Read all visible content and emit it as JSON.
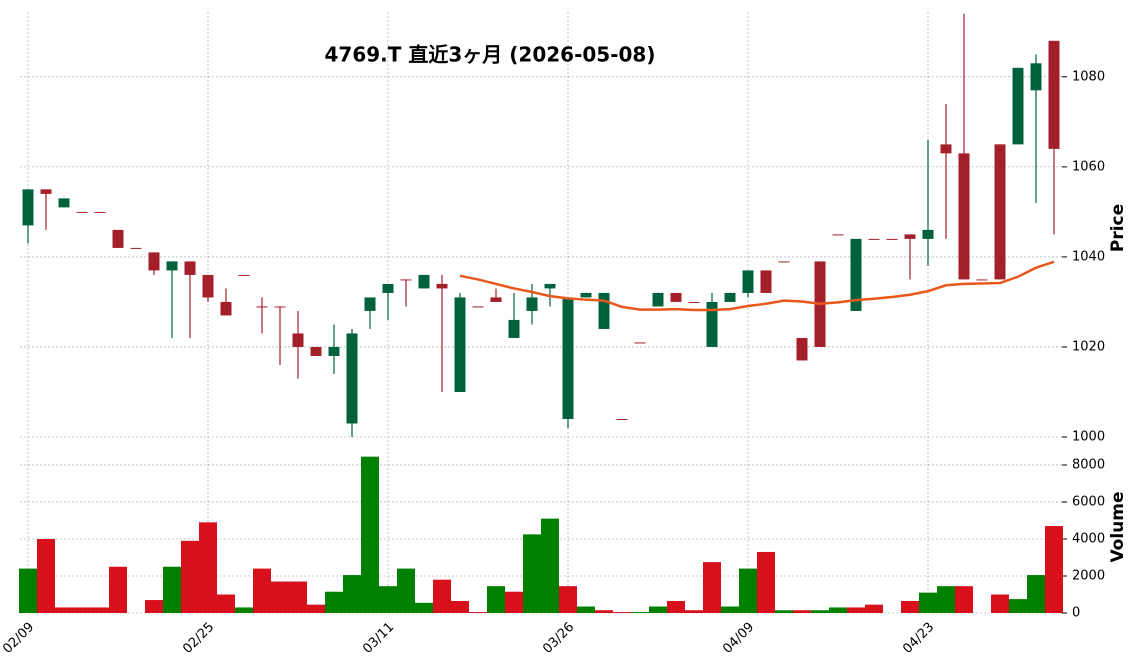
{
  "chart_data": [
    {
      "type": "candlestick",
      "title": "4769.T 直近3ヶ月 (2026-05-08)",
      "ylabel": "Price",
      "categories": [
        "02/09",
        null,
        null,
        null,
        null,
        null,
        null,
        null,
        null,
        null,
        "02/25",
        null,
        null,
        null,
        null,
        null,
        null,
        null,
        null,
        null,
        "03/11",
        null,
        null,
        null,
        null,
        null,
        null,
        null,
        null,
        null,
        "03/26",
        null,
        null,
        null,
        null,
        null,
        null,
        null,
        null,
        null,
        "04/09",
        null,
        null,
        null,
        null,
        null,
        null,
        null,
        null,
        null,
        "04/23",
        null,
        null,
        null,
        null,
        null,
        null,
        null
      ],
      "open": [
        1047,
        1055,
        1051,
        1050,
        1050,
        1046,
        1042,
        1041,
        1037,
        1039,
        1036,
        1030,
        1036,
        1029,
        1029,
        1023,
        1020,
        1018,
        1003,
        1028,
        1032,
        1035,
        1033,
        1034,
        1010,
        1029,
        1031,
        1022,
        1028,
        1033,
        1004,
        1031,
        1024,
        1004,
        1021,
        1029,
        1032,
        1030,
        1020,
        1030,
        1032,
        1037,
        1039,
        1022,
        1039,
        1045,
        1028,
        1044,
        1044,
        1045,
        1044,
        1065,
        1063,
        1035,
        1065,
        1065,
        1077,
        1088
      ],
      "high": [
        1055,
        1055,
        1053,
        1050,
        1050,
        1046,
        1042,
        1041,
        1039,
        1039,
        1036,
        1033,
        1036,
        1031,
        1029,
        1028,
        1020,
        1025,
        1024,
        1031,
        1034,
        1035,
        1036,
        1036,
        1032,
        1029,
        1033,
        1032,
        1034,
        1034,
        1031,
        1032,
        1032,
        1004,
        1021,
        1032,
        1032,
        1030,
        1032,
        1032,
        1037,
        1037,
        1039,
        1022,
        1039,
        1045,
        1044,
        1044,
        1044,
        1045,
        1066,
        1074,
        1094,
        1035,
        1065,
        1082,
        1085,
        1088
      ],
      "low": [
        1043,
        1046,
        1051,
        1050,
        1050,
        1042,
        1042,
        1036,
        1022,
        1022,
        1030,
        1027,
        1036,
        1023,
        1016,
        1013,
        1018,
        1014,
        1000,
        1024,
        1026,
        1029,
        1033,
        1010,
        1010,
        1029,
        1030,
        1022,
        1025,
        1029,
        1002,
        1031,
        1024,
        1004,
        1021,
        1029,
        1030,
        1030,
        1020,
        1030,
        1031,
        1032,
        1039,
        1017,
        1020,
        1045,
        1028,
        1044,
        1044,
        1035,
        1038,
        1044,
        1035,
        1035,
        1035,
        1065,
        1052,
        1045
      ],
      "close": [
        1055,
        1054,
        1053,
        1050,
        1050,
        1042,
        1042,
        1037,
        1039,
        1036,
        1031,
        1027,
        1036,
        1029,
        1029,
        1020,
        1018,
        1020,
        1023,
        1031,
        1034,
        1035,
        1036,
        1033,
        1031,
        1029,
        1030,
        1026,
        1031,
        1034,
        1031,
        1032,
        1032,
        1004,
        1021,
        1032,
        1030,
        1030,
        1030,
        1032,
        1037,
        1032,
        1039,
        1017,
        1020,
        1045,
        1044,
        1044,
        1044,
        1044,
        1046,
        1063,
        1035,
        1035,
        1035,
        1082,
        1083,
        1064
      ],
      "up_color": "#00623c",
      "down_color": "#a31f2a",
      "series": [
        {
          "color": "#e8581c",
          "values": [
            null,
            null,
            null,
            null,
            null,
            null,
            null,
            null,
            null,
            null,
            null,
            null,
            null,
            null,
            null,
            null,
            null,
            null,
            null,
            null,
            null,
            null,
            null,
            null,
            1035.8,
            1035,
            1034,
            1033,
            1032.2,
            1031.3,
            1030.8,
            1030.5,
            1030.3,
            1028.9,
            1028.3,
            1028.3,
            1028.4,
            1028.2,
            1028.2,
            1028.4,
            1029.1,
            1029.6,
            1030.3,
            1030.1,
            1029.6,
            1029.9,
            1030.4,
            1030.7,
            1031.1,
            1031.6,
            1032.4,
            1033.7,
            1034.0,
            1034.1,
            1034.2,
            1035.6,
            1037.6,
            1038.9
          ]
        }
      ],
      "ylim": [
        1000,
        1094.4
      ],
      "yticks": [
        1000,
        1020,
        1040,
        1060,
        1080
      ],
      "grid": true
    },
    {
      "type": "bar",
      "ylabel": "Volume",
      "values": [
        2400,
        4000,
        300,
        300,
        300,
        2500,
        0,
        700,
        2500,
        3900,
        4900,
        1000,
        300,
        2400,
        1700,
        1700,
        450,
        1150,
        2050,
        8450,
        1450,
        2400,
        550,
        1800,
        650,
        50,
        1450,
        1150,
        4250,
        5100,
        1450,
        350,
        150,
        50,
        50,
        350,
        650,
        150,
        2750,
        350,
        2400,
        3300,
        150,
        150,
        150,
        300,
        300,
        450,
        0,
        650,
        1100,
        1450,
        1450,
        0,
        1000,
        750,
        2050,
        4700
      ],
      "up_color": "#008000",
      "down_color": "#d7101c",
      "ylim": [
        0,
        9350
      ],
      "yticks": [
        0,
        2000,
        4000,
        6000,
        8000
      ],
      "grid": true
    }
  ]
}
